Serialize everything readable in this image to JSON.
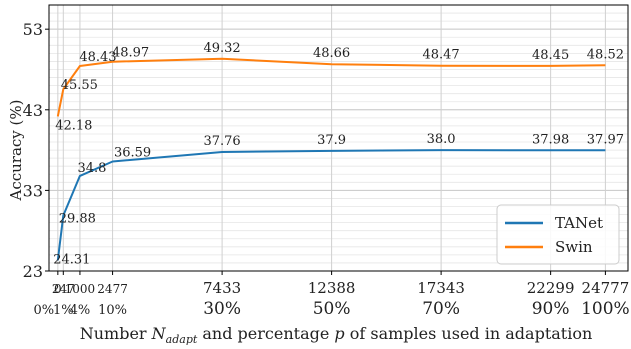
{
  "chart_data": {
    "type": "line",
    "title": "",
    "xlabel_parts": {
      "pre": "Number ",
      "sym": "N",
      "sub": "adapt",
      "mid": " and percentage ",
      "p": "p",
      "post": " of samples used in adaptation"
    },
    "ylabel": "Accuracy (%)",
    "ylim": [
      23,
      56
    ],
    "yticks": [
      23,
      33,
      43,
      53
    ],
    "grid": true,
    "legend_position": "lower-right",
    "x_positions": [
      0,
      247,
      1000,
      2477,
      7433,
      12388,
      17343,
      22299,
      24777
    ],
    "x_numbers": [
      "0",
      "247",
      "1000",
      "2477",
      "7433",
      "12388",
      "17343",
      "22299",
      "24777"
    ],
    "x_percent": [
      {
        "x": 0,
        "label": "0%",
        "small": true
      },
      {
        "x": 247,
        "label": "1%",
        "small": true
      },
      {
        "x": 1000,
        "label": "4%",
        "small": true
      },
      {
        "x": 2477,
        "label": "10%",
        "small": true
      },
      {
        "x": 7433,
        "label": "30%",
        "small": false
      },
      {
        "x": 12388,
        "label": "50%",
        "small": false
      },
      {
        "x": 17343,
        "label": "70%",
        "small": false
      },
      {
        "x": 22299,
        "label": "90%",
        "small": false
      },
      {
        "x": 24777,
        "label": "100%",
        "small": false
      }
    ],
    "series": [
      {
        "name": "TANet",
        "color": "#1f77b4",
        "x": [
          0,
          247,
          1000,
          2477,
          7433,
          12388,
          17343,
          22299,
          24777
        ],
        "values": [
          24.31,
          29.88,
          34.8,
          36.59,
          37.76,
          37.9,
          38.0,
          37.98,
          37.97
        ],
        "labels": [
          "24.31",
          "29.88",
          "34.8",
          "36.59",
          "37.76",
          "37.9",
          "38.0",
          "37.98",
          "37.97"
        ]
      },
      {
        "name": "Swin",
        "color": "#ff7f0e",
        "x": [
          0,
          247,
          1000,
          2477,
          7433,
          12388,
          17343,
          22299,
          24777
        ],
        "values": [
          42.18,
          45.55,
          48.43,
          48.97,
          49.32,
          48.66,
          48.47,
          48.45,
          48.52
        ],
        "labels": [
          "42.18",
          "45.55",
          "48.43",
          "48.97",
          "49.32",
          "48.66",
          "48.47",
          "48.45",
          "48.52"
        ]
      }
    ]
  }
}
